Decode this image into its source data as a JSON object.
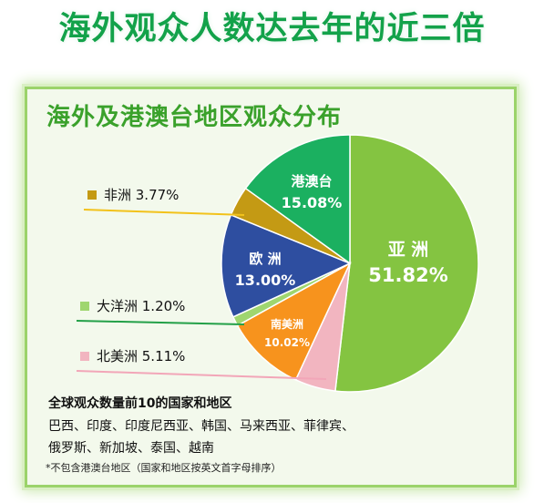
{
  "headline": "海外观众人数达去年的近三倍",
  "chart_data": {
    "type": "pie",
    "title": "海外及港澳台地区观众分布",
    "slices": [
      {
        "label": "亚 洲",
        "value": 51.82,
        "display": "51.82%",
        "color": "#84c441"
      },
      {
        "label": "北美洲",
        "value": 5.11,
        "display": "5.11%",
        "color": "#f2b5c0"
      },
      {
        "label": "南美洲",
        "value": 10.02,
        "display": "10.02%",
        "color": "#f7931d"
      },
      {
        "label": "大洋洲",
        "value": 1.2,
        "display": "1.20%",
        "color": "#9fd66f"
      },
      {
        "label": "欧 洲",
        "value": 13.0,
        "display": "13.00%",
        "color": "#2e4ea0"
      },
      {
        "label": "非洲",
        "value": 3.77,
        "display": "3.77%",
        "color": "#c49a14"
      },
      {
        "label": "港澳台",
        "value": 15.08,
        "display": "15.08%",
        "color": "#1bb060"
      }
    ],
    "legend_texts": {
      "非洲": "非洲 3.77%",
      "大洋洲": "大洋洲 1.20%",
      "北美洲": "北美洲 5.11%"
    },
    "line_colors": {
      "非洲": "#f2c21b",
      "大洋洲": "#23a048",
      "北美洲": "#f2a6b8"
    }
  },
  "notes": {
    "title": "全球观众数量前10的国家和地区",
    "line1": "巴西、印度、印度尼西亚、韩国、马来西亚、菲律宾、",
    "line2": "俄罗斯、新加坡、泰国、越南",
    "footnote": "*不包含港澳台地区（国家和地区按英文首字母排序）"
  }
}
